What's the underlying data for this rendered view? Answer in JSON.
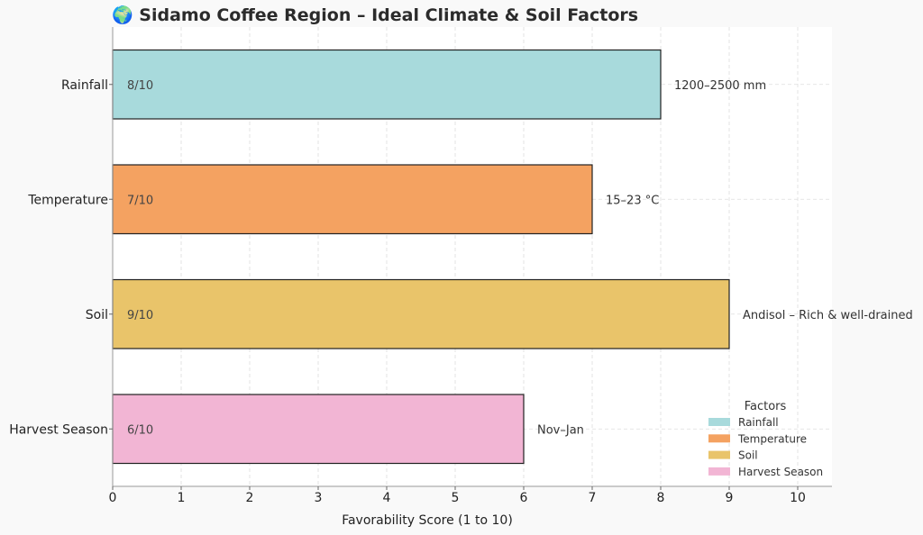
{
  "chart_data": {
    "type": "bar",
    "orientation": "horizontal",
    "title": "🌍 Sidamo Coffee Region – Ideal Climate & Soil Factors",
    "xlabel": "Favorability Score (1 to 10)",
    "ylabel": "",
    "xlim": [
      0,
      10.5
    ],
    "xticks": [
      "0",
      "1",
      "2",
      "3",
      "4",
      "5",
      "6",
      "7",
      "8",
      "9",
      "10"
    ],
    "grid": true,
    "categories": [
      "Rainfall",
      "Temperature",
      "Soil",
      "Harvest Season"
    ],
    "values": [
      8,
      7,
      9,
      6
    ],
    "value_labels": [
      "8/10",
      "7/10",
      "9/10",
      "6/10"
    ],
    "details": [
      "1200–2500 mm",
      "15–23 °C",
      "Andisol – Rich & well-drained",
      "Nov–Jan"
    ],
    "colors": [
      "#a8dadc",
      "#f4a261",
      "#e9c46a",
      "#f2b5d4"
    ],
    "legend": {
      "title": "Factors",
      "placement": "lower-right",
      "entries": [
        "Rainfall",
        "Temperature",
        "Soil",
        "Harvest Season"
      ]
    }
  }
}
